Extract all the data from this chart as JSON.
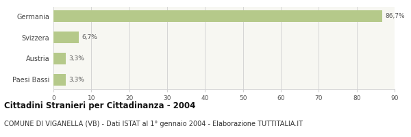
{
  "categories": [
    "Germania",
    "Svizzera",
    "Austria",
    "Paesi Bassi"
  ],
  "values": [
    86.7,
    6.7,
    3.3,
    3.3
  ],
  "labels": [
    "86,7%",
    "6,7%",
    "3,3%",
    "3,3%"
  ],
  "bar_color": "#b5c98a",
  "background_color": "#ffffff",
  "plot_bg_color": "#f7f7f2",
  "xlim": [
    0,
    90
  ],
  "xticks": [
    0,
    10,
    20,
    30,
    40,
    50,
    60,
    70,
    80,
    90
  ],
  "title": "Cittadini Stranieri per Cittadinanza - 2004",
  "subtitle": "COMUNE DI VIGANELLA (VB) - Dati ISTAT al 1° gennaio 2004 - Elaborazione TUTTITALIA.IT",
  "title_fontsize": 8.5,
  "subtitle_fontsize": 7.0,
  "label_fontsize": 6.5,
  "tick_fontsize": 6.5,
  "ytick_fontsize": 7.0,
  "grid_color": "#d0d0d0"
}
